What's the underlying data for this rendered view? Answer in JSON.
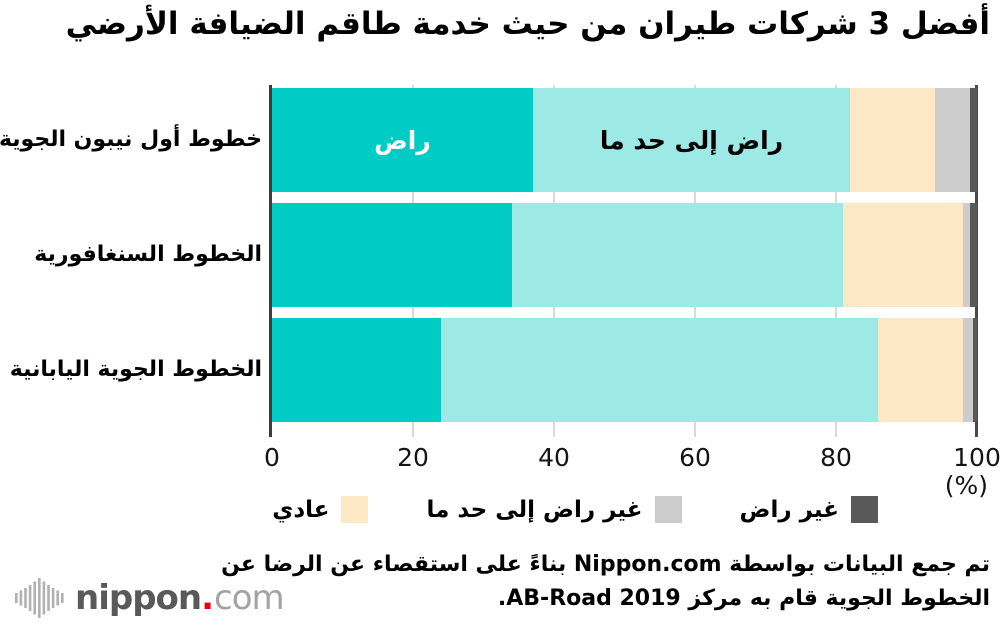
{
  "title": "أفضل 3 شركات طيران من حيث خدمة طاقم الضيافة الأرضي",
  "chart_data": {
    "type": "bar",
    "orientation": "horizontal",
    "stacked": true,
    "categories": [
      "خطوط أول نيبون الجوية",
      "الخطوط السنغافورية",
      "الخطوط الجوية اليابانية"
    ],
    "series": [
      {
        "name": "راض",
        "color": "#00ccc6",
        "values": [
          37,
          34,
          24
        ]
      },
      {
        "name": "راض إلى حد ما",
        "color": "#9ce9e6",
        "values": [
          45,
          47,
          62
        ]
      },
      {
        "name": "عادي",
        "color": "#fde8c6",
        "values": [
          12,
          17,
          12
        ]
      },
      {
        "name": "غير راض إلى حد ما",
        "color": "#cccccc",
        "values": [
          5,
          1,
          1.5
        ]
      },
      {
        "name": "غير راض",
        "color": "#595959",
        "values": [
          1,
          1,
          0.5
        ]
      }
    ],
    "xlim": [
      0,
      100
    ],
    "x_ticks": [
      0,
      20,
      40,
      60,
      80,
      100
    ],
    "x_axis_unit": "(%)",
    "inline_labels": [
      {
        "row": 0,
        "segment": 0,
        "text": "راض",
        "color": "#ffffff"
      },
      {
        "row": 0,
        "segment": 1,
        "text": "راض إلى حد ما",
        "color": "#000000"
      }
    ],
    "legend_position": "bottom",
    "grid": true
  },
  "legend": {
    "items": [
      {
        "label": "غير راض",
        "color": "#595959"
      },
      {
        "label": "غير راض إلى حد ما",
        "color": "#cccccc"
      },
      {
        "label": "عادي",
        "color": "#fde8c6"
      }
    ]
  },
  "footer": {
    "line1": "تم جمع البيانات بواسطة Nippon.com بناءً على استقصاء عن الرضا عن",
    "line2": "الخطوط الجوية قام به مركز AB-Road 2019."
  },
  "logo": {
    "brand": "nippon",
    "dot": ".",
    "tld": "com",
    "dot_color": "#e60012"
  }
}
